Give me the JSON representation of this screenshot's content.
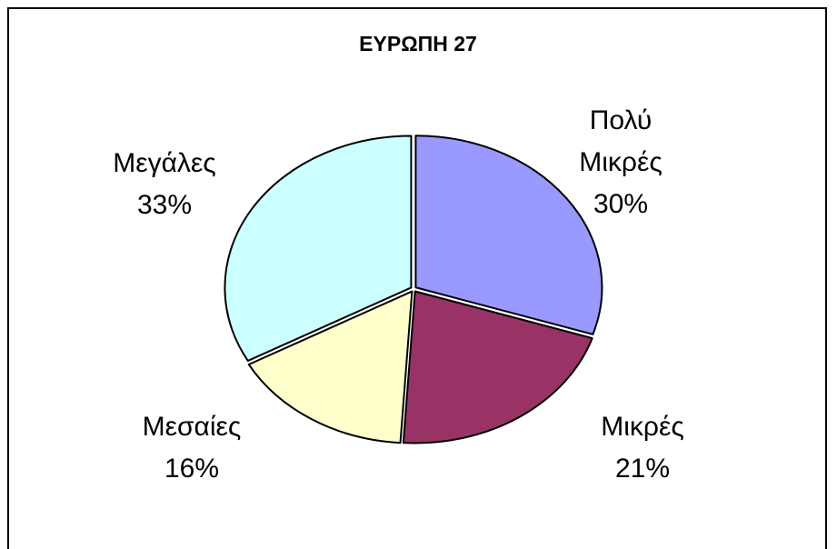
{
  "chart_data": {
    "type": "pie",
    "title": "ΕΥΡΩΠΗ 27",
    "categories": [
      "Πολύ Μικρές",
      "Μικρές",
      "Μεσαίες",
      "Μεγάλες"
    ],
    "values": [
      30,
      21,
      16,
      33
    ],
    "value_labels": [
      "30%",
      "21%",
      "16%",
      "33%"
    ],
    "colors": [
      "#9999ff",
      "#993366",
      "#ffffcc",
      "#ccffff"
    ]
  }
}
